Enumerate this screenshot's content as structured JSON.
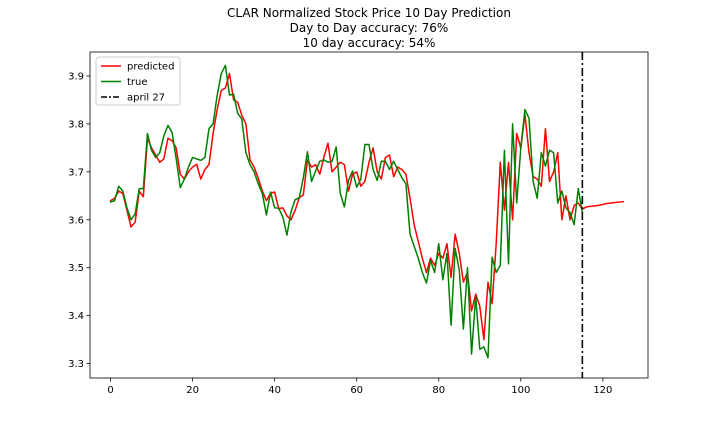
{
  "chart_data": {
    "type": "line",
    "title": [
      "CLAR Normalized Stock Price 10 Day Prediction",
      "Day to Day accuracy: 76%",
      "10 day accuracy: 54%"
    ],
    "xlabel": "",
    "ylabel": "",
    "xlim": [
      -5,
      131
    ],
    "ylim": [
      3.27,
      3.95
    ],
    "xticks": [
      0,
      20,
      40,
      60,
      80,
      100,
      120
    ],
    "yticks": [
      3.3,
      3.4,
      3.5,
      3.6,
      3.7,
      3.8,
      3.9
    ],
    "ytick_labels": [
      "3.3",
      "3.4",
      "3.5",
      "3.6",
      "3.7",
      "3.8",
      "3.9"
    ],
    "grid": false,
    "legend_position": "top-left",
    "series": [
      {
        "name": "predicted",
        "color": "#ff0000",
        "x": [
          0,
          1,
          2,
          3,
          4,
          5,
          6,
          7,
          8,
          9,
          10,
          11,
          12,
          13,
          14,
          15,
          16,
          17,
          18,
          19,
          20,
          21,
          22,
          23,
          24,
          25,
          26,
          27,
          28,
          29,
          30,
          31,
          32,
          33,
          34,
          35,
          36,
          37,
          38,
          39,
          40,
          41,
          42,
          43,
          44,
          45,
          46,
          47,
          48,
          49,
          50,
          51,
          52,
          53,
          54,
          55,
          56,
          57,
          58,
          59,
          60,
          61,
          62,
          63,
          64,
          65,
          66,
          67,
          68,
          69,
          70,
          71,
          72,
          73,
          74,
          75,
          76,
          77,
          78,
          79,
          80,
          81,
          82,
          83,
          84,
          85,
          86,
          87,
          88,
          89,
          90,
          91,
          92,
          93,
          94,
          95,
          96,
          97,
          98,
          99,
          100,
          101,
          102,
          103,
          104,
          105,
          106,
          107,
          108,
          109,
          110,
          111,
          112,
          113,
          114,
          115,
          116,
          117,
          118,
          119,
          120,
          121,
          122,
          123,
          124,
          125
        ],
        "values": [
          3.64,
          3.645,
          3.66,
          3.655,
          3.62,
          3.585,
          3.595,
          3.66,
          3.648,
          3.77,
          3.75,
          3.735,
          3.72,
          3.727,
          3.77,
          3.765,
          3.75,
          3.695,
          3.685,
          3.7,
          3.71,
          3.716,
          3.685,
          3.705,
          3.715,
          3.78,
          3.83,
          3.87,
          3.875,
          3.905,
          3.85,
          3.845,
          3.818,
          3.8,
          3.725,
          3.71,
          3.687,
          3.66,
          3.64,
          3.655,
          3.658,
          3.623,
          3.625,
          3.608,
          3.6,
          3.62,
          3.646,
          3.652,
          3.725,
          3.71,
          3.715,
          3.695,
          3.73,
          3.76,
          3.7,
          3.71,
          3.72,
          3.715,
          3.66,
          3.695,
          3.7,
          3.67,
          3.68,
          3.72,
          3.75,
          3.7,
          3.685,
          3.73,
          3.735,
          3.69,
          3.71,
          3.705,
          3.695,
          3.645,
          3.59,
          3.555,
          3.52,
          3.49,
          3.52,
          3.505,
          3.53,
          3.52,
          3.55,
          3.48,
          3.57,
          3.53,
          3.47,
          3.49,
          3.41,
          3.445,
          3.42,
          3.35,
          3.47,
          3.425,
          3.55,
          3.72,
          3.62,
          3.72,
          3.6,
          3.78,
          3.75,
          3.82,
          3.74,
          3.69,
          3.685,
          3.67,
          3.79,
          3.68,
          3.7,
          3.74,
          3.6,
          3.65,
          3.6,
          3.63,
          3.635,
          3.622,
          3.627,
          3.628,
          3.629,
          3.63,
          3.632,
          3.634,
          3.635,
          3.636,
          3.637,
          3.638
        ]
      },
      {
        "name": "true",
        "color": "#008000",
        "x": [
          0,
          1,
          2,
          3,
          4,
          5,
          6,
          7,
          8,
          9,
          10,
          11,
          12,
          13,
          14,
          15,
          16,
          17,
          18,
          19,
          20,
          21,
          22,
          23,
          24,
          25,
          26,
          27,
          28,
          29,
          30,
          31,
          32,
          33,
          34,
          35,
          36,
          37,
          38,
          39,
          40,
          41,
          42,
          43,
          44,
          45,
          46,
          47,
          48,
          49,
          50,
          51,
          52,
          53,
          54,
          55,
          56,
          57,
          58,
          59,
          60,
          61,
          62,
          63,
          64,
          65,
          66,
          67,
          68,
          69,
          70,
          71,
          72,
          73,
          74,
          75,
          76,
          77,
          78,
          79,
          80,
          81,
          82,
          83,
          84,
          85,
          86,
          87,
          88,
          89,
          90,
          91,
          92,
          93,
          94,
          95,
          96,
          97,
          98,
          99,
          100,
          101,
          102,
          103,
          104,
          105,
          106,
          107,
          108,
          109,
          110,
          111,
          112,
          113,
          114,
          115
        ],
        "values": [
          3.637,
          3.64,
          3.67,
          3.66,
          3.625,
          3.6,
          3.612,
          3.665,
          3.665,
          3.78,
          3.745,
          3.73,
          3.74,
          3.775,
          3.797,
          3.782,
          3.728,
          3.667,
          3.685,
          3.71,
          3.73,
          3.727,
          3.724,
          3.73,
          3.79,
          3.8,
          3.86,
          3.905,
          3.922,
          3.86,
          3.862,
          3.822,
          3.81,
          3.74,
          3.715,
          3.7,
          3.675,
          3.655,
          3.61,
          3.658,
          3.625,
          3.624,
          3.606,
          3.568,
          3.617,
          3.642,
          3.646,
          3.688,
          3.742,
          3.68,
          3.702,
          3.722,
          3.725,
          3.72,
          3.722,
          3.752,
          3.655,
          3.627,
          3.682,
          3.702,
          3.668,
          3.685,
          3.757,
          3.757,
          3.705,
          3.682,
          3.722,
          3.722,
          3.705,
          3.722,
          3.705,
          3.688,
          3.675,
          3.57,
          3.545,
          3.52,
          3.49,
          3.468,
          3.515,
          3.49,
          3.55,
          3.475,
          3.53,
          3.38,
          3.54,
          3.495,
          3.372,
          3.5,
          3.32,
          3.44,
          3.33,
          3.335,
          3.312,
          3.522,
          3.49,
          3.505,
          3.745,
          3.508,
          3.8,
          3.635,
          3.75,
          3.83,
          3.812,
          3.68,
          3.645,
          3.74,
          3.712,
          3.745,
          3.74,
          3.635,
          3.66,
          3.625,
          3.615,
          3.59,
          3.665,
          3.615
        ]
      }
    ],
    "vlines": [
      {
        "name": "april 27",
        "x": 115,
        "color": "#000000",
        "style": "dashdot"
      }
    ],
    "legend": [
      "predicted",
      "true",
      "april 27"
    ]
  }
}
